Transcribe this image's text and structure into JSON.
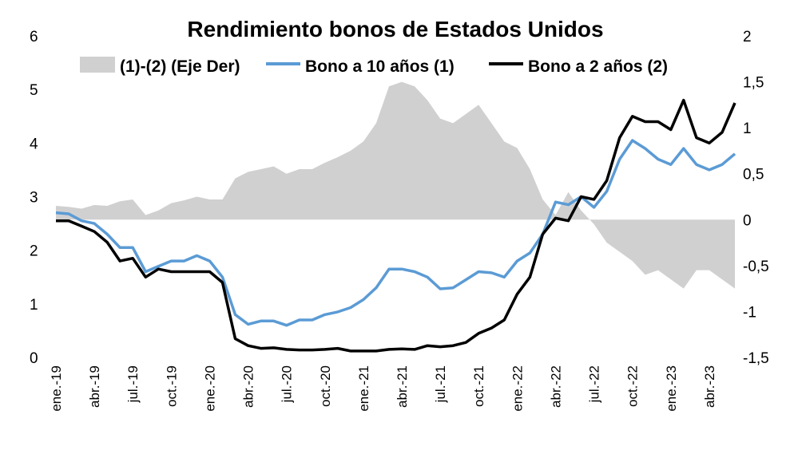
{
  "chart_data": {
    "type": "line",
    "title": "Rendimiento bonos de Estados Unidos",
    "legend_position": "top",
    "grid": false,
    "x_tick_labels": [
      "ene.-19",
      "abr.-19",
      "jul.-19",
      "oct.-19",
      "ene.-20",
      "abr.-20",
      "jul.-20",
      "oct.-20",
      "ene.-21",
      "abr.-21",
      "jul.-21",
      "oct.-21",
      "ene.-22",
      "abr.-22",
      "jul.-22",
      "oct.-22",
      "ene.-23",
      "abr.-23"
    ],
    "x_range": [
      "2019-01",
      "2023-06"
    ],
    "y_left": {
      "range": [
        0,
        6
      ],
      "ticks": [
        "0",
        "1",
        "2",
        "3",
        "4",
        "5",
        "6"
      ]
    },
    "y_right": {
      "range": [
        -1.5,
        2
      ],
      "ticks": [
        "-1,5",
        "-1",
        "-0,5",
        "0",
        "0,5",
        "1",
        "1,5",
        "2"
      ]
    },
    "x": [
      "2019-01",
      "2019-02",
      "2019-03",
      "2019-04",
      "2019-05",
      "2019-06",
      "2019-07",
      "2019-08",
      "2019-09",
      "2019-10",
      "2019-11",
      "2019-12",
      "2020-01",
      "2020-02",
      "2020-03",
      "2020-04",
      "2020-05",
      "2020-06",
      "2020-07",
      "2020-08",
      "2020-09",
      "2020-10",
      "2020-11",
      "2020-12",
      "2021-01",
      "2021-02",
      "2021-03",
      "2021-04",
      "2021-05",
      "2021-06",
      "2021-07",
      "2021-08",
      "2021-09",
      "2021-10",
      "2021-11",
      "2021-12",
      "2022-01",
      "2022-02",
      "2022-03",
      "2022-04",
      "2022-05",
      "2022-06",
      "2022-07",
      "2022-08",
      "2022-09",
      "2022-10",
      "2022-11",
      "2022-12",
      "2023-01",
      "2023-02",
      "2023-03",
      "2023-04",
      "2023-05",
      "2023-06"
    ],
    "series": [
      {
        "name": "(1)-(2) (Eje Der)",
        "axis": "right",
        "kind": "area",
        "color": "#d1d0d1",
        "values": [
          0.15,
          0.14,
          0.12,
          0.16,
          0.15,
          0.2,
          0.22,
          0.05,
          0.1,
          0.18,
          0.21,
          0.25,
          0.22,
          0.22,
          0.45,
          0.52,
          0.55,
          0.58,
          0.5,
          0.55,
          0.55,
          0.62,
          0.68,
          0.75,
          0.85,
          1.05,
          1.45,
          1.5,
          1.45,
          1.3,
          1.1,
          1.05,
          1.15,
          1.25,
          1.05,
          0.85,
          0.78,
          0.55,
          0.22,
          0.05,
          0.3,
          0.1,
          -0.05,
          -0.25,
          -0.35,
          -0.45,
          -0.6,
          -0.55,
          -0.65,
          -0.75,
          -0.55,
          -0.55,
          -0.65,
          -0.75
        ]
      },
      {
        "name": "Bono a 10 años (1)",
        "axis": "left",
        "kind": "line",
        "color": "#5b9bd5",
        "values": [
          2.7,
          2.68,
          2.55,
          2.5,
          2.3,
          2.05,
          2.05,
          1.6,
          1.7,
          1.8,
          1.8,
          1.9,
          1.8,
          1.5,
          0.8,
          0.62,
          0.68,
          0.68,
          0.6,
          0.7,
          0.7,
          0.8,
          0.85,
          0.93,
          1.08,
          1.3,
          1.65,
          1.65,
          1.6,
          1.5,
          1.28,
          1.3,
          1.45,
          1.6,
          1.58,
          1.5,
          1.8,
          1.95,
          2.3,
          2.9,
          2.85,
          3.0,
          2.8,
          3.1,
          3.7,
          4.05,
          3.9,
          3.7,
          3.6,
          3.9,
          3.6,
          3.5,
          3.6,
          3.8
        ]
      },
      {
        "name": "Bono a 2 años (2)",
        "axis": "left",
        "kind": "line",
        "color": "#000000",
        "values": [
          2.55,
          2.55,
          2.45,
          2.35,
          2.15,
          1.8,
          1.85,
          1.5,
          1.65,
          1.6,
          1.6,
          1.6,
          1.6,
          1.4,
          0.35,
          0.22,
          0.17,
          0.18,
          0.15,
          0.14,
          0.14,
          0.15,
          0.17,
          0.12,
          0.12,
          0.12,
          0.15,
          0.16,
          0.15,
          0.22,
          0.2,
          0.22,
          0.28,
          0.45,
          0.55,
          0.7,
          1.18,
          1.5,
          2.3,
          2.6,
          2.55,
          3.0,
          2.95,
          3.3,
          4.1,
          4.5,
          4.4,
          4.4,
          4.25,
          4.8,
          4.1,
          4.0,
          4.2,
          4.75
        ]
      }
    ]
  }
}
